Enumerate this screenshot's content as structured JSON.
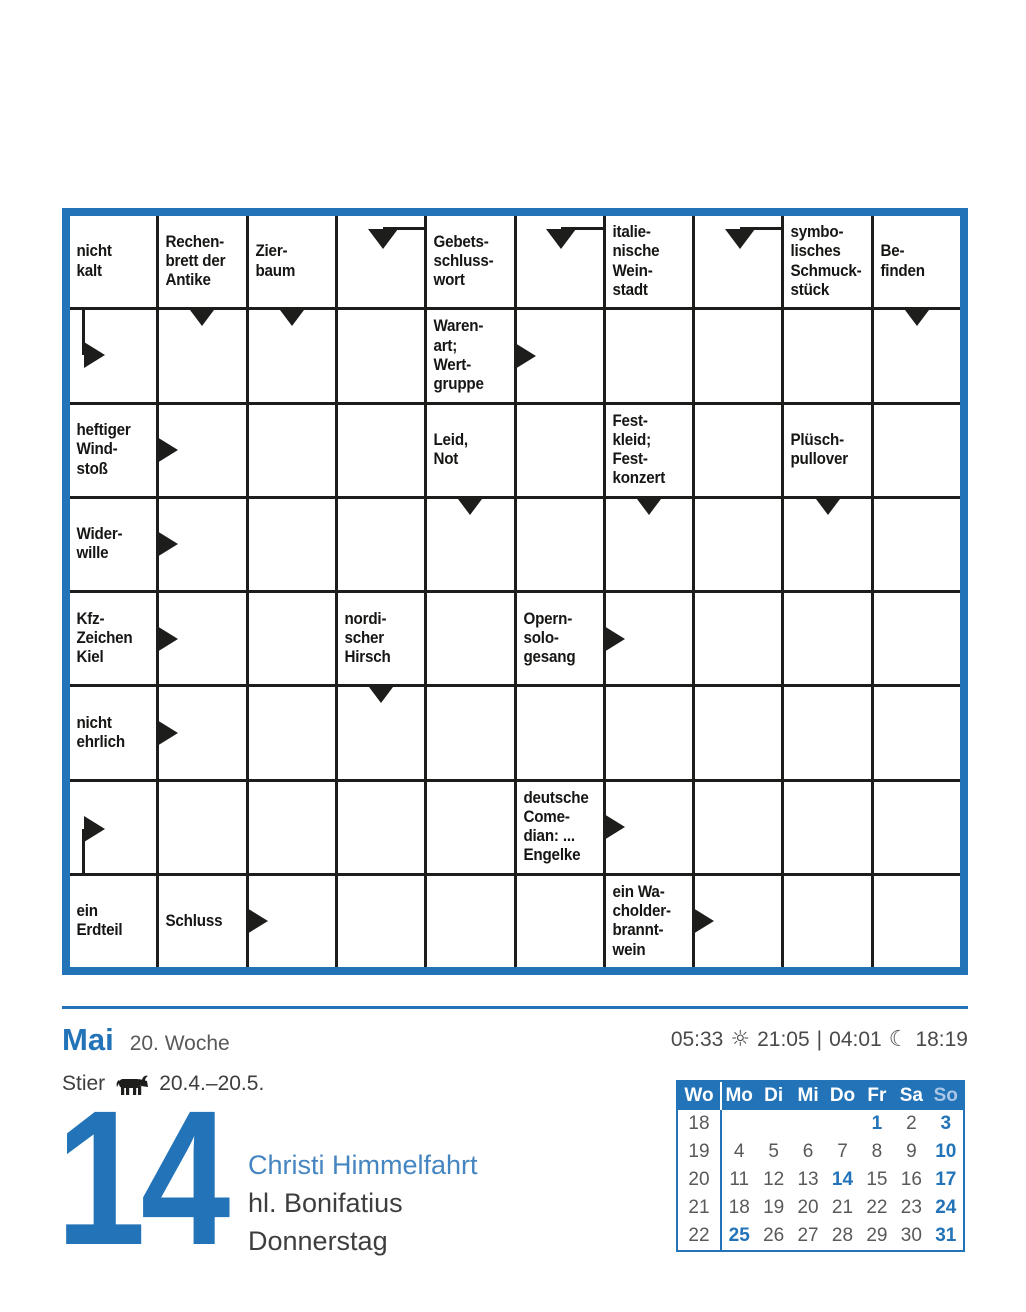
{
  "colors": {
    "accent": "#2273b8",
    "grid_line": "#1d1d1b",
    "gray_text": "#58595b",
    "dark_text": "#3e3e40",
    "holiday_blue": "#4585c1",
    "sunday_header": "#a9c6e6"
  },
  "crossword": {
    "rows": 8,
    "cols": 10,
    "cells": [
      {
        "r": 1,
        "c": 1,
        "lines": [
          "nicht",
          "kalt"
        ]
      },
      {
        "r": 1,
        "c": 2,
        "lines": [
          "Rechen-",
          "brett der",
          "Antike"
        ]
      },
      {
        "r": 1,
        "c": 3,
        "lines": [
          "Zier-",
          "baum"
        ]
      },
      {
        "r": 1,
        "c": 4,
        "arrow": "elbow-down"
      },
      {
        "r": 1,
        "c": 5,
        "lines": [
          "Gebets-",
          "schluss-",
          "wort"
        ]
      },
      {
        "r": 1,
        "c": 6,
        "arrow": "elbow-down"
      },
      {
        "r": 1,
        "c": 7,
        "lines": [
          "italie-",
          "nische",
          "Wein-",
          "stadt"
        ]
      },
      {
        "r": 1,
        "c": 8,
        "arrow": "elbow-down"
      },
      {
        "r": 1,
        "c": 9,
        "lines": [
          "symbo-",
          "lisches",
          "Schmuck-",
          "stück"
        ]
      },
      {
        "r": 1,
        "c": 10,
        "lines": [
          "Be-",
          "finden"
        ]
      },
      {
        "r": 2,
        "c": 1,
        "arrow": "elbow-right-top"
      },
      {
        "r": 2,
        "c": 2,
        "arrow": "down"
      },
      {
        "r": 2,
        "c": 3,
        "arrow": "down"
      },
      {
        "r": 2,
        "c": 5,
        "lines": [
          "Waren-",
          "art;",
          "Wert-",
          "gruppe"
        ],
        "arrow": "right"
      },
      {
        "r": 2,
        "c": 10,
        "arrow": "down"
      },
      {
        "r": 3,
        "c": 1,
        "lines": [
          "heftiger",
          "Wind-",
          "stoß"
        ],
        "arrow": "right"
      },
      {
        "r": 3,
        "c": 5,
        "lines": [
          "Leid,",
          "Not"
        ]
      },
      {
        "r": 3,
        "c": 7,
        "lines": [
          "Fest-",
          "kleid;",
          "Fest-",
          "konzert"
        ]
      },
      {
        "r": 3,
        "c": 9,
        "lines": [
          "Plüsch-",
          "pullover"
        ]
      },
      {
        "r": 4,
        "c": 1,
        "lines": [
          "Wider-",
          "wille"
        ],
        "arrow": "right"
      },
      {
        "r": 4,
        "c": 5,
        "arrow": "down"
      },
      {
        "r": 4,
        "c": 7,
        "arrow": "down"
      },
      {
        "r": 4,
        "c": 9,
        "arrow": "down"
      },
      {
        "r": 5,
        "c": 1,
        "lines": [
          "Kfz-",
          "Zeichen",
          "Kiel"
        ],
        "arrow": "right"
      },
      {
        "r": 5,
        "c": 4,
        "lines": [
          "nordi-",
          "scher",
          "Hirsch"
        ]
      },
      {
        "r": 5,
        "c": 6,
        "lines": [
          "Opern-",
          "solo-",
          "gesang"
        ],
        "arrow": "right"
      },
      {
        "r": 6,
        "c": 1,
        "lines": [
          "nicht",
          "ehrlich"
        ],
        "arrow": "right"
      },
      {
        "r": 6,
        "c": 4,
        "arrow": "down"
      },
      {
        "r": 7,
        "c": 1,
        "arrow": "elbow-right-bottom"
      },
      {
        "r": 7,
        "c": 6,
        "lines": [
          "deutsche",
          "Come-",
          "dian: ...",
          "Engelke"
        ],
        "arrow": "right"
      },
      {
        "r": 8,
        "c": 1,
        "lines": [
          "ein",
          "Erdteil"
        ]
      },
      {
        "r": 8,
        "c": 2,
        "lines": [
          "Schluss"
        ],
        "arrow": "right"
      },
      {
        "r": 8,
        "c": 7,
        "lines": [
          "ein Wa-",
          "cholder-",
          "brannt-",
          "wein"
        ],
        "arrow": "right"
      }
    ]
  },
  "footer": {
    "month": "Mai",
    "week": "20. Woche",
    "times": {
      "sunrise": "05:33",
      "sunset": "21:05",
      "separator": "|",
      "moonrise": "04:01",
      "moonset": "18:19"
    },
    "zodiac": {
      "name": "Stier",
      "range": "20.4.–20.5."
    },
    "day": {
      "number": "14",
      "line1": "Christi Himmelfahrt",
      "line2": "hl. Bonifatius",
      "line3": "Donnerstag"
    }
  },
  "mini_calendar": {
    "headers": [
      "Wo",
      "Mo",
      "Di",
      "Mi",
      "Do",
      "Fr",
      "Sa",
      "So"
    ],
    "weeks": [
      {
        "week": "18",
        "days": [
          "",
          "",
          "",
          "",
          "1",
          "2",
          "3"
        ]
      },
      {
        "week": "19",
        "days": [
          "4",
          "5",
          "6",
          "7",
          "8",
          "9",
          "10"
        ]
      },
      {
        "week": "20",
        "days": [
          "11",
          "12",
          "13",
          "14",
          "15",
          "16",
          "17"
        ]
      },
      {
        "week": "21",
        "days": [
          "18",
          "19",
          "20",
          "21",
          "22",
          "23",
          "24"
        ]
      },
      {
        "week": "22",
        "days": [
          "25",
          "26",
          "27",
          "28",
          "29",
          "30",
          "31"
        ]
      }
    ],
    "highlighted_days": [
      "1",
      "3",
      "10",
      "14",
      "17",
      "24",
      "25",
      "31"
    ]
  }
}
